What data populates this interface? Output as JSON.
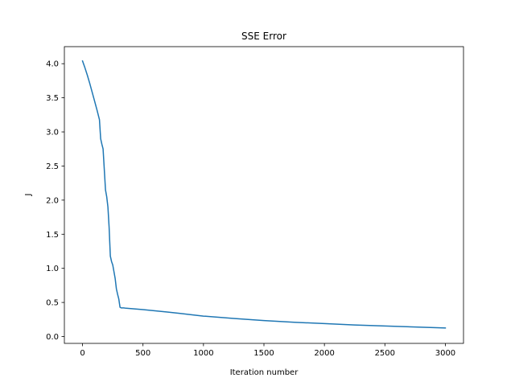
{
  "chart_data": {
    "type": "line",
    "title": "SSE Error",
    "xlabel": "Iteration number",
    "ylabel": "J",
    "xlim": [
      -150,
      3150
    ],
    "ylim": [
      -0.1,
      4.25
    ],
    "x_ticks": [
      0,
      500,
      1000,
      1500,
      2000,
      2500,
      3000
    ],
    "x_tick_labels": [
      "0",
      "500",
      "1000",
      "1500",
      "2000",
      "2500",
      "3000"
    ],
    "y_ticks": [
      0.0,
      0.5,
      1.0,
      1.5,
      2.0,
      2.5,
      3.0,
      3.5,
      4.0
    ],
    "y_tick_labels": [
      "0.0",
      "0.5",
      "1.0",
      "1.5",
      "2.0",
      "2.5",
      "3.0",
      "3.5",
      "4.0"
    ],
    "grid": false,
    "legend": "none",
    "colors": {
      "line": "#1f77b4",
      "axes": "#000000",
      "background": "#ffffff"
    },
    "series": [
      {
        "x": [
          0,
          20,
          40,
          60,
          80,
          100,
          120,
          140,
          150,
          160,
          170,
          180,
          190,
          200,
          210,
          220,
          230,
          240,
          250,
          260,
          270,
          280,
          290,
          300,
          310,
          320,
          330,
          340,
          360,
          400,
          500,
          600,
          700,
          800,
          900,
          1000,
          1250,
          1500,
          1750,
          2000,
          2250,
          2500,
          2750,
          3000
        ],
        "y": [
          4.04,
          3.94,
          3.83,
          3.71,
          3.58,
          3.45,
          3.32,
          3.18,
          2.9,
          2.82,
          2.75,
          2.45,
          2.15,
          2.05,
          1.9,
          1.6,
          1.18,
          1.1,
          1.05,
          0.95,
          0.85,
          0.7,
          0.62,
          0.55,
          0.43,
          0.42,
          0.42,
          0.42,
          0.415,
          0.41,
          0.395,
          0.378,
          0.36,
          0.34,
          0.32,
          0.3,
          0.265,
          0.235,
          0.21,
          0.19,
          0.17,
          0.155,
          0.14,
          0.125
        ]
      }
    ]
  }
}
